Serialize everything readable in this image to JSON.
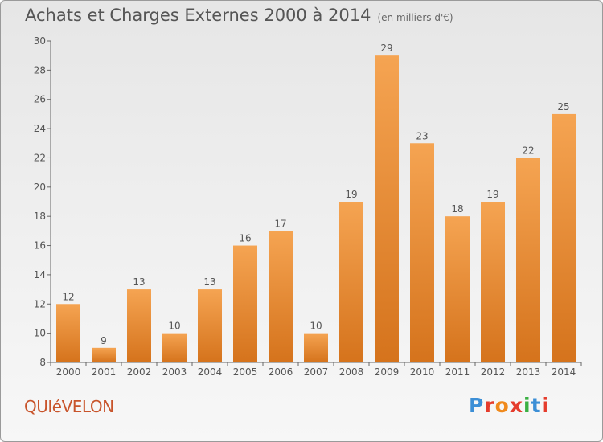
{
  "header": {
    "title": "Achats et Charges Externes 2000 à 2014",
    "unit": "(en milliers d'€)"
  },
  "footer": {
    "commune": "QUIéVELON",
    "logo": "Proxiti"
  },
  "colors": {
    "bar_light": "#f5a452",
    "bar_dark": "#d5731c",
    "label": "#555555",
    "logo_letters": [
      "#3c8fd6",
      "#e53c2c",
      "#f08a1c",
      "#e53c2c",
      "#3ab043",
      "#3c8fd6",
      "#e53c2c"
    ]
  },
  "chart_data": {
    "type": "bar",
    "categories": [
      "2000",
      "2001",
      "2002",
      "2003",
      "2004",
      "2005",
      "2006",
      "2007",
      "2008",
      "2009",
      "2010",
      "2011",
      "2012",
      "2013",
      "2014"
    ],
    "values": [
      12,
      9,
      13,
      10,
      13,
      16,
      17,
      10,
      19,
      29,
      23,
      18,
      19,
      22,
      25
    ],
    "title": "Achats et Charges Externes 2000 à 2014",
    "xlabel": "",
    "ylabel": "",
    "ylim": [
      8,
      30
    ],
    "yticks": [
      8,
      10,
      12,
      14,
      16,
      18,
      20,
      22,
      24,
      26,
      28,
      30
    ],
    "grid": false,
    "data_labels": true
  }
}
